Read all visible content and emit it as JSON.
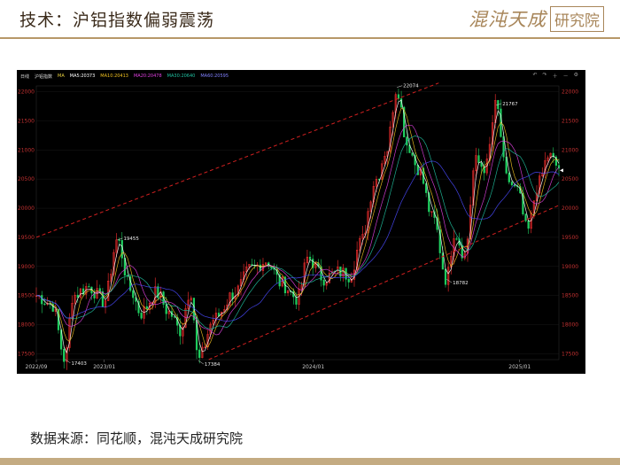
{
  "page": {
    "title": "技术：沪铝指数偏弱震荡",
    "logo_text": "混沌天成",
    "logo_box": "研究院",
    "source": "数据来源：同花顺，混沌天成研究院"
  },
  "legend": {
    "period": "日线",
    "symbol": "沪铝指数",
    "items": [
      {
        "label": "MA",
        "color": "#e8d040"
      },
      {
        "label": "MA5:20373",
        "color": "#ffffff"
      },
      {
        "label": "MA10:20413",
        "color": "#f0c020"
      },
      {
        "label": "MA20:20478",
        "color": "#e040e0"
      },
      {
        "label": "MA30:20640",
        "color": "#20c0a0"
      },
      {
        "label": "MA60:20595",
        "color": "#6060ff"
      }
    ]
  },
  "toolbar": {
    "icons": [
      "undo-icon",
      "redo-icon",
      "zoom-in-icon",
      "zoom-out-icon",
      "settings-icon"
    ]
  },
  "colors": {
    "up": "#ff3030",
    "down": "#20d060",
    "channel": "#d02020",
    "grid": "#202020",
    "axis_text": "#c03030",
    "frame": "#b0b0b0"
  },
  "chart_data": {
    "type": "candlestick",
    "ylim": [
      17400,
      22100
    ],
    "y_ticks": [
      17500,
      18000,
      18500,
      19000,
      19500,
      20000,
      20500,
      21000,
      21500,
      22000
    ],
    "x_ticks": [
      {
        "label": "2022/09",
        "t": 0.0
      },
      {
        "label": "2023/01",
        "t": 0.13
      },
      {
        "label": "2024/01",
        "t": 0.53
      },
      {
        "label": "2025/01",
        "t": 0.925
      }
    ],
    "anchors": [
      [
        0.0,
        18500
      ],
      [
        0.03,
        18350
      ],
      [
        0.055,
        17403
      ],
      [
        0.07,
        18500
      ],
      [
        0.1,
        18650
      ],
      [
        0.13,
        18400
      ],
      [
        0.155,
        19455
      ],
      [
        0.18,
        18600
      ],
      [
        0.2,
        18200
      ],
      [
        0.23,
        18550
      ],
      [
        0.255,
        18200
      ],
      [
        0.275,
        17900
      ],
      [
        0.295,
        18600
      ],
      [
        0.31,
        17384
      ],
      [
        0.34,
        18100
      ],
      [
        0.38,
        18550
      ],
      [
        0.41,
        18950
      ],
      [
        0.44,
        19100
      ],
      [
        0.47,
        18700
      ],
      [
        0.5,
        18450
      ],
      [
        0.52,
        19150
      ],
      [
        0.55,
        18800
      ],
      [
        0.58,
        18900
      ],
      [
        0.6,
        18850
      ],
      [
        0.62,
        19400
      ],
      [
        0.65,
        20500
      ],
      [
        0.67,
        21000
      ],
      [
        0.69,
        22074
      ],
      [
        0.71,
        21100
      ],
      [
        0.73,
        20700
      ],
      [
        0.76,
        19800
      ],
      [
        0.785,
        18782
      ],
      [
        0.8,
        19600
      ],
      [
        0.82,
        19200
      ],
      [
        0.84,
        20800
      ],
      [
        0.86,
        20700
      ],
      [
        0.88,
        21767
      ],
      [
        0.9,
        20500
      ],
      [
        0.92,
        20300
      ],
      [
        0.94,
        19600
      ],
      [
        0.96,
        20400
      ],
      [
        0.98,
        20900
      ],
      [
        1.0,
        20700
      ]
    ],
    "annotations": [
      {
        "label": "17403",
        "t": 0.055,
        "value": 17403
      },
      {
        "label": "19455",
        "t": 0.155,
        "value": 19455
      },
      {
        "label": "17384",
        "t": 0.31,
        "value": 17384
      },
      {
        "label": "22074",
        "t": 0.69,
        "value": 22074
      },
      {
        "label": "18782",
        "t": 0.785,
        "value": 18782
      },
      {
        "label": "21767",
        "t": 0.88,
        "value": 21767
      }
    ],
    "moving_averages": [
      "MA5",
      "MA10",
      "MA20",
      "MA30",
      "MA60"
    ],
    "channel": {
      "upper": [
        [
          0.0,
          19500
        ],
        [
          0.77,
          22150
        ]
      ],
      "lower": [
        [
          0.33,
          17400
        ],
        [
          1.0,
          20050
        ]
      ]
    },
    "last_price": 20650
  }
}
